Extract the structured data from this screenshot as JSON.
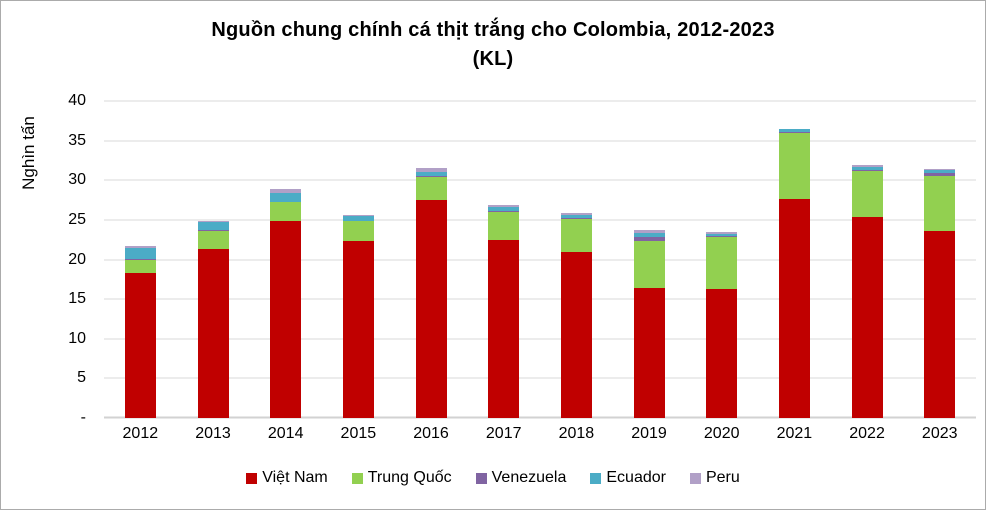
{
  "title": {
    "line1": "Nguồn chung chính cá thịt trắng cho Colombia, 2012-2023",
    "line2": "(KL)"
  },
  "chart_data": {
    "type": "bar",
    "stacked": true,
    "title": "Nguồn chung chính cá thịt trắng cho Colombia, 2012-2023 (KL)",
    "xlabel": "",
    "ylabel": "Nghìn tấn",
    "ylim": [
      0,
      40
    ],
    "y_tick_step": 5,
    "y_tick_labels": [
      "-",
      "5",
      "10",
      "15",
      "20",
      "25",
      "30",
      "35",
      "40"
    ],
    "grid": "horizontal",
    "legend_position": "bottom",
    "categories": [
      "2012",
      "2013",
      "2014",
      "2015",
      "2016",
      "2017",
      "2018",
      "2019",
      "2020",
      "2021",
      "2022",
      "2023"
    ],
    "series": [
      {
        "name": "Việt Nam",
        "color": "#C00000",
        "values": [
          18.3,
          21.3,
          24.8,
          22.3,
          27.5,
          22.4,
          20.9,
          16.4,
          16.3,
          27.6,
          25.4,
          23.6
        ]
      },
      {
        "name": "Trung Quốc",
        "color": "#92D050",
        "values": [
          1.7,
          2.3,
          2.4,
          2.5,
          2.9,
          3.6,
          4.2,
          5.9,
          6.6,
          8.4,
          5.8,
          7.0
        ]
      },
      {
        "name": "Venezuela",
        "color": "#8064A2",
        "values": [
          0.1,
          0.1,
          0.1,
          0.1,
          0.1,
          0.1,
          0.1,
          0.6,
          0.1,
          0.1,
          0.1,
          0.3
        ]
      },
      {
        "name": "Ecuador",
        "color": "#4BACC6",
        "values": [
          1.4,
          1.0,
          1.1,
          0.6,
          0.5,
          0.5,
          0.4,
          0.5,
          0.2,
          0.35,
          0.4,
          0.4
        ]
      },
      {
        "name": "Peru",
        "color": "#B1A0C7",
        "values": [
          0.2,
          0.2,
          0.5,
          0.15,
          0.5,
          0.25,
          0.3,
          0.35,
          0.25,
          0.05,
          0.2,
          0.1
        ]
      }
    ]
  }
}
